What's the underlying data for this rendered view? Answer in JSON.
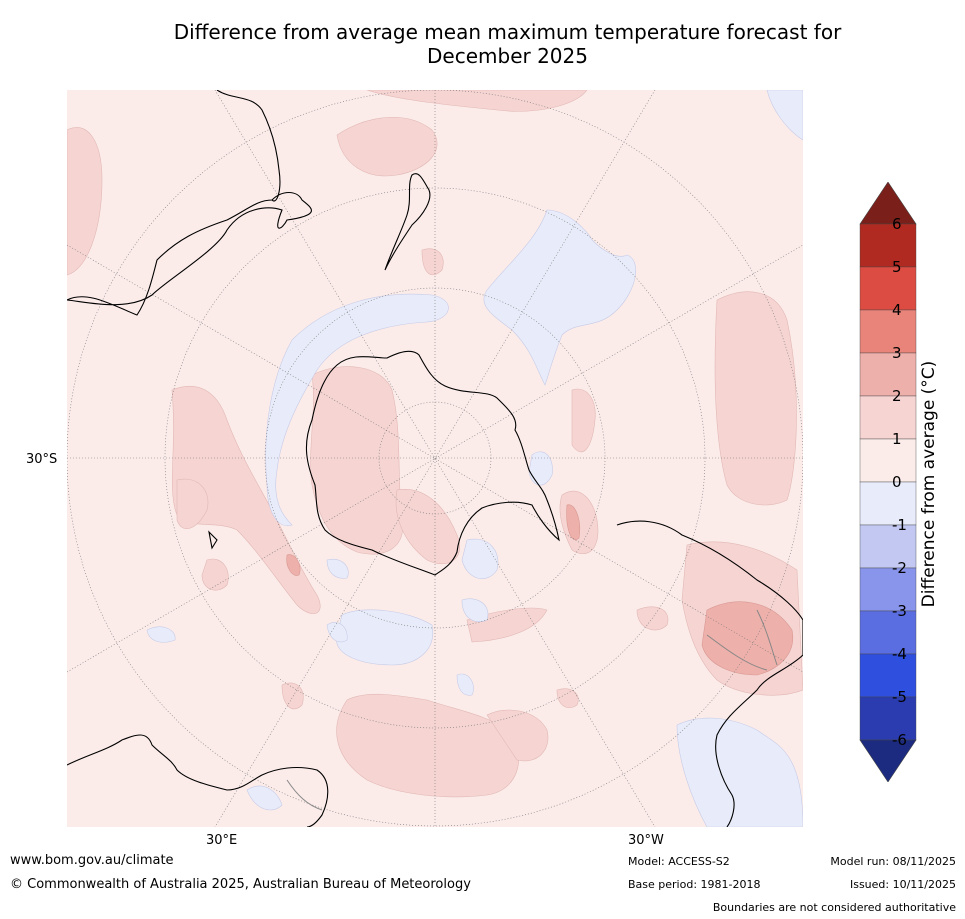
{
  "title_line1": "Difference from average mean maximum temperature forecast for",
  "title_line2": "December 2025",
  "map": {
    "lat_label": "30°S",
    "lon_label_east": "30°E",
    "lon_label_west": "30°W"
  },
  "colorbar": {
    "label": "Difference from average (°C)",
    "ticks": [
      "6",
      "5",
      "4",
      "3",
      "2",
      "1",
      "0",
      "-1",
      "-2",
      "-3",
      "-4",
      "-5",
      "-6"
    ],
    "colors": {
      "over": "#7a1f1a",
      "5_6": "#b02a22",
      "4_5": "#dc4c42",
      "3_4": "#e8847a",
      "2_3": "#eeb0aa",
      "1_2": "#f5d4d2",
      "0_1": "#fbecea",
      "m1_0": "#e8ecfa",
      "m2_m1": "#c2c8f2",
      "m3_m2": "#8995ea",
      "m4_m3": "#5a6ee2",
      "m5_m4": "#2f4fde",
      "m6_m5": "#2a3cb0",
      "under": "#1c2b7f"
    }
  },
  "footer": {
    "url": "www.bom.gov.au/climate",
    "copyright": "© Commonwealth of Australia 2025, Australian Bureau of Meteorology",
    "model": "Model: ACCESS-S2",
    "base_period": "Base period: 1981-2018",
    "model_run": "Model run: 08/11/2025",
    "issued": "Issued: 10/11/2025",
    "disclaimer": "Boundaries are not considered authoritative"
  }
}
